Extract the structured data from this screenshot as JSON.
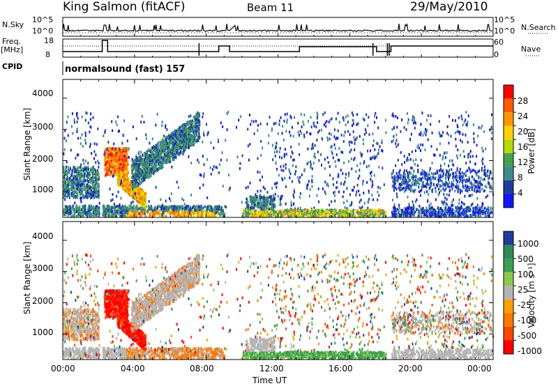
{
  "header": {
    "station": "King Salmon (fitACF)",
    "beam": "Beam 11",
    "date": "29/May/2010"
  },
  "strips": {
    "nsky_label": "N.Sky",
    "nsky_ticks": [
      "10^5",
      "10^0"
    ],
    "nsky_ticks_right": [
      "10^5",
      "10^0"
    ],
    "nsearch_label": "N.Search",
    "freq_label_1": "Freq.",
    "freq_label_2": "[MHz]",
    "freq_ticks": [
      "18",
      "8"
    ],
    "nave_ticks": [
      "60",
      "0"
    ],
    "nave_label": "Nave",
    "cpid_label": "CPID",
    "cpid_value": "normalsound (fast) 157"
  },
  "panels": {
    "ylabel": "Slant Range [km]",
    "yticks": [
      "4000",
      "3000",
      "2000",
      "1000"
    ],
    "xlabel": "Time UT",
    "xticks": [
      "00:00",
      "04:00",
      "08:00",
      "12:00",
      "16:00",
      "20:00",
      "00:00"
    ]
  },
  "power_scale": {
    "label": "Power [dB]",
    "ticks": [
      "28",
      "24",
      "20",
      "16",
      "12",
      "8",
      "4"
    ],
    "colors": [
      "#ff0000",
      "#ff5a00",
      "#ff9600",
      "#ffd200",
      "#b4dc00",
      "#46a050",
      "#3c8c8c",
      "#1e3ca0",
      "#1414ff"
    ]
  },
  "velocity_scale": {
    "label": "Velocity [m s⁻¹]",
    "ticks": [
      "1000",
      "500",
      "100",
      "25",
      "-25",
      "-100",
      "-500",
      "-1000"
    ],
    "colors": [
      "#1e3ca0",
      "#2e8b57",
      "#3ca050",
      "#8cc84b",
      "#b4b4b4",
      "#ffa000",
      "#ff7800",
      "#ff4600",
      "#ff0000"
    ]
  },
  "chart_data": {
    "type": "heatmap",
    "title": "King Salmon (fitACF)  Beam 11  29/May/2010",
    "xlabel": "Time UT",
    "ylabel": "Slant Range [km]",
    "xlim": [
      "00:00",
      "24:00"
    ],
    "ylim": [
      180,
      4600
    ],
    "data_gaps_hours": [
      [
        2.05,
        2.2
      ],
      [
        9.3,
        9.6
      ],
      [
        18.0,
        18.3
      ]
    ],
    "panels": [
      {
        "name": "Power [dB]",
        "scale": [
          4,
          28
        ]
      },
      {
        "name": "Velocity [m s⁻¹]",
        "scale": [
          -1000,
          1000
        ]
      }
    ]
  }
}
